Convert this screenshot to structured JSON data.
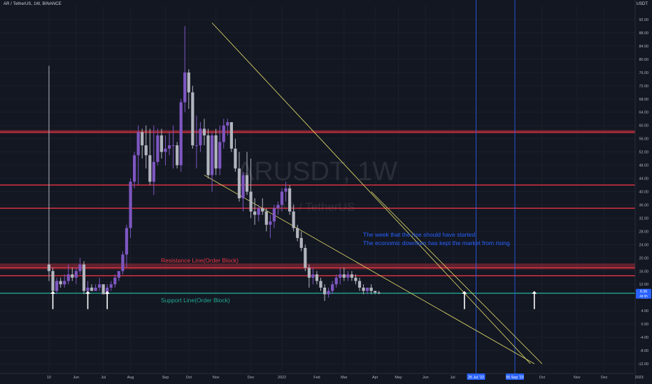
{
  "header": {
    "title": "AR / TetherUS, 1W, BINANCE",
    "currency": "USDT"
  },
  "watermark": {
    "symbol": "ARUSDT, 1W",
    "name": "AR / TetherUS"
  },
  "annotations": {
    "resistance": "Resistance Line(Order Block)",
    "support": "Support Line(Order Block)",
    "note_line1": "The week that the rise should have started",
    "note_line2": "The economic downturn has kept the market from rising"
  },
  "price_tag": {
    "price": "9.36",
    "countdown": "4d 6h"
  },
  "colors": {
    "background": "#131722",
    "bull": "#7e57c2",
    "bear": "#b2b5be",
    "resistance": "#f23645",
    "support": "#22ab94",
    "trendline": "#e8e36a",
    "vline": "#2962ff",
    "annotation_blue": "#2962ff"
  },
  "chart_data": {
    "type": "candlestick",
    "ylim": [
      -12,
      92
    ],
    "y_ticks": [
      "92.00",
      "88.00",
      "84.00",
      "80.00",
      "76.00",
      "72.00",
      "68.00",
      "64.00",
      "60.00",
      "56.00",
      "52.00",
      "48.00",
      "44.00",
      "40.00",
      "36.00",
      "32.00",
      "28.00",
      "24.00",
      "20.00",
      "16.00",
      "12.00",
      "8.00",
      "4.00",
      "0.00",
      "-4.00",
      "-8.00",
      "-12.00"
    ],
    "x_ticks": [
      {
        "label": "10",
        "week": 0
      },
      {
        "label": "Jun",
        "week": 7
      },
      {
        "label": "Jul",
        "week": 14
      },
      {
        "label": "Aug",
        "week": 21
      },
      {
        "label": "Sep",
        "week": 30
      },
      {
        "label": "Oct",
        "week": 36
      },
      {
        "label": "Nov",
        "week": 43
      },
      {
        "label": "Dec",
        "week": 52
      },
      {
        "label": "2022",
        "week": 60
      },
      {
        "label": "Feb",
        "week": 69
      },
      {
        "label": "Mar",
        "week": 76
      },
      {
        "label": "Apr",
        "week": 84
      },
      {
        "label": "May",
        "week": 90
      },
      {
        "label": "Jun",
        "week": 97
      },
      {
        "label": "Jul",
        "week": 104
      },
      {
        "label": "25 Jul '22",
        "week": 110,
        "highlight": true
      },
      {
        "label": "05 Sep '22",
        "week": 120,
        "highlight": true
      },
      {
        "label": "Oct",
        "week": 127
      },
      {
        "label": "Nov",
        "week": 136
      },
      {
        "label": "Dec",
        "week": 143
      },
      {
        "label": "2023",
        "week": 152
      },
      {
        "label": "Feb",
        "week": 160
      },
      {
        "label": "Mar",
        "week": 167
      },
      {
        "label": "Apr",
        "week": 174
      },
      {
        "label": "May",
        "week": 181
      },
      {
        "label": "Jun",
        "week": 188
      }
    ],
    "candles": [
      [
        0,
        18,
        78,
        13,
        16
      ],
      [
        1,
        16,
        17,
        9,
        10
      ],
      [
        2,
        10,
        14,
        9,
        13
      ],
      [
        3,
        13,
        14,
        11,
        12
      ],
      [
        4,
        12,
        15,
        11,
        13
      ],
      [
        5,
        13,
        18,
        12,
        15
      ],
      [
        6,
        15,
        17,
        13,
        14
      ],
      [
        7,
        14,
        17,
        12,
        16
      ],
      [
        8,
        16,
        20,
        15,
        18
      ],
      [
        9,
        18,
        19,
        9,
        10
      ],
      [
        10,
        10,
        13,
        9,
        11
      ],
      [
        11,
        11,
        12,
        10,
        10
      ],
      [
        12,
        10,
        12,
        10,
        11
      ],
      [
        13,
        11,
        14,
        10,
        12
      ],
      [
        14,
        12,
        12,
        9,
        9
      ],
      [
        15,
        9,
        12,
        8,
        11
      ],
      [
        16,
        11,
        13,
        10,
        12
      ],
      [
        17,
        12,
        15,
        11,
        14
      ],
      [
        18,
        14,
        16,
        13,
        16
      ],
      [
        19,
        16,
        22,
        15,
        21
      ],
      [
        20,
        21,
        30,
        17,
        29
      ],
      [
        21,
        29,
        44,
        26,
        43
      ],
      [
        22,
        43,
        52,
        41,
        51
      ],
      [
        23,
        51,
        60,
        42,
        58
      ],
      [
        24,
        58,
        59,
        50,
        54
      ],
      [
        25,
        54,
        60,
        47,
        51
      ],
      [
        26,
        51,
        59,
        42,
        43
      ],
      [
        27,
        43,
        60,
        39,
        49
      ],
      [
        28,
        49,
        59,
        48,
        57
      ],
      [
        29,
        57,
        59,
        50,
        52
      ],
      [
        30,
        52,
        57,
        48,
        53
      ],
      [
        31,
        53,
        58,
        51,
        54
      ],
      [
        32,
        54,
        60,
        47,
        54
      ],
      [
        33,
        54,
        55,
        47,
        48
      ],
      [
        34,
        48,
        68,
        46,
        67
      ],
      [
        35,
        67,
        90,
        64,
        76
      ],
      [
        36,
        76,
        77,
        65,
        70
      ],
      [
        37,
        70,
        72,
        53,
        54
      ],
      [
        38,
        54,
        63,
        47,
        54
      ],
      [
        39,
        54,
        61,
        52,
        59
      ],
      [
        40,
        59,
        62,
        54,
        57
      ],
      [
        41,
        57,
        59,
        44,
        45
      ],
      [
        42,
        45,
        58,
        40,
        57
      ],
      [
        43,
        57,
        59,
        45,
        47
      ],
      [
        44,
        47,
        60,
        45,
        55
      ],
      [
        45,
        55,
        62,
        53,
        60
      ],
      [
        46,
        60,
        62,
        57,
        61
      ],
      [
        47,
        61,
        61,
        52,
        53
      ],
      [
        48,
        53,
        56,
        46,
        47
      ],
      [
        49,
        47,
        52,
        37,
        38
      ],
      [
        50,
        38,
        46,
        34,
        45
      ],
      [
        51,
        45,
        52,
        39,
        40
      ],
      [
        52,
        40,
        50,
        32,
        34
      ],
      [
        53,
        34,
        38,
        30,
        33
      ],
      [
        54,
        33,
        36,
        31,
        35
      ],
      [
        55,
        35,
        38,
        33,
        34
      ],
      [
        56,
        34,
        35,
        28,
        30
      ],
      [
        57,
        30,
        33,
        26,
        31
      ],
      [
        58,
        31,
        36,
        29,
        35
      ],
      [
        59,
        35,
        37,
        33,
        36
      ],
      [
        60,
        36,
        41,
        34,
        40
      ],
      [
        61,
        40,
        43,
        37,
        41
      ],
      [
        62,
        41,
        42,
        33,
        34
      ],
      [
        63,
        34,
        36,
        28,
        29
      ],
      [
        64,
        29,
        30,
        25,
        26
      ],
      [
        65,
        26,
        28,
        22,
        23
      ],
      [
        66,
        23,
        24,
        16,
        17
      ],
      [
        67,
        17,
        18,
        11,
        14
      ],
      [
        68,
        14,
        17,
        12,
        15
      ],
      [
        69,
        15,
        16,
        12,
        13
      ],
      [
        70,
        13,
        14,
        10,
        11
      ],
      [
        71,
        11,
        12,
        7,
        9
      ],
      [
        72,
        9,
        11,
        8,
        10
      ],
      [
        73,
        10,
        13,
        9,
        12
      ],
      [
        74,
        12,
        15,
        11,
        14
      ],
      [
        75,
        14,
        17,
        12,
        15
      ],
      [
        76,
        15,
        17,
        13,
        14
      ],
      [
        77,
        14,
        16,
        13,
        15
      ],
      [
        78,
        15,
        16,
        13,
        14
      ],
      [
        79,
        14,
        15,
        12,
        13
      ],
      [
        80,
        13,
        14,
        10,
        11
      ],
      [
        81,
        11,
        12,
        9,
        10
      ],
      [
        82,
        10,
        11,
        9,
        11
      ],
      [
        83,
        11,
        12,
        9,
        10
      ],
      [
        84,
        10,
        10,
        9,
        9.5
      ],
      [
        85,
        9.5,
        10,
        9,
        9.36
      ]
    ],
    "levels": [
      {
        "name": "resistance-upper",
        "price": 58,
        "color": "#f23645",
        "band": [
          57.6,
          58.6
        ]
      },
      {
        "name": "resistance-mid",
        "price": 42,
        "color": "#f23645",
        "band": [
          41.8,
          42.2
        ]
      },
      {
        "name": "resistance-low",
        "price": 35,
        "color": "#f23645",
        "band": [
          34.8,
          35.2
        ]
      },
      {
        "name": "order-block",
        "price": 17,
        "color": "#f23645",
        "band": [
          16.5,
          18.3
        ]
      },
      {
        "name": "order-block-lower",
        "price": 14.6,
        "color": "#f23645",
        "band": [
          14.4,
          14.8
        ]
      },
      {
        "name": "support",
        "price": 9.3,
        "color": "#22ab94",
        "band": [
          9.1,
          9.5
        ]
      }
    ],
    "trendlines": [
      {
        "from": [
          42,
          91
        ],
        "to": [
          124,
          -12
        ]
      },
      {
        "from": [
          40,
          45
        ],
        "to": [
          125,
          -12
        ]
      },
      {
        "from": [
          83,
          40
        ],
        "to": [
          127,
          -12
        ]
      }
    ],
    "vlines": [
      110,
      120
    ],
    "arrows_weeks": [
      1,
      10,
      15,
      107,
      125
    ],
    "arrow_price": 4.5
  }
}
